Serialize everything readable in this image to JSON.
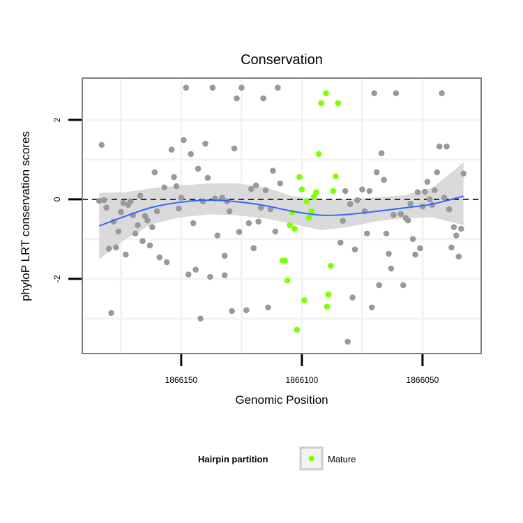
{
  "chart_data": {
    "type": "scatter",
    "title": "Conservation",
    "xlabel": "Genomic Position",
    "ylabel": "phyloP LRT conservation scores",
    "xlim": [
      1866191,
      1866025.7
    ],
    "x_reversed": true,
    "ylim": [
      -3.88,
      3.05
    ],
    "x_ticks": [
      1866150,
      1866100,
      1866050
    ],
    "x_tick_labels": [
      "1866150",
      "1866100",
      "1866050"
    ],
    "y_ticks": [
      -2,
      0,
      2
    ],
    "y_tick_labels": [
      "-2",
      "0",
      "2"
    ],
    "x_minor_grid": [
      1866175,
      1866125,
      1866075
    ],
    "y_minor_grid": [
      -3,
      -1,
      1
    ],
    "grid": true,
    "reference_line": {
      "y": 0,
      "style": "dashed",
      "color": "#000000"
    },
    "legend": {
      "position": "bottom",
      "title": "Hairpin partition",
      "entries": [
        {
          "label": "Mature",
          "color": "#7fff00"
        }
      ]
    },
    "colors": {
      "other": "#999999",
      "mature": "#7fff00",
      "smooth": "#3366ff",
      "ribbon": "#d4d4d4",
      "panel_border": "#7f7f7f"
    },
    "series": [
      {
        "name": "Other",
        "points": [
          [
            1866183,
            1.37
          ],
          [
            1866184,
            -0.04
          ],
          [
            1866182,
            -0.02
          ],
          [
            1866181,
            -0.21
          ],
          [
            1866180,
            -1.24
          ],
          [
            1866179,
            -2.86
          ],
          [
            1866178,
            -0.56
          ],
          [
            1866177,
            -1.21
          ],
          [
            1866176,
            -0.81
          ],
          [
            1866175,
            -0.32
          ],
          [
            1866174,
            -0.09
          ],
          [
            1866172,
            -0.14
          ],
          [
            1866171,
            -0.05
          ],
          [
            1866173,
            -1.39
          ],
          [
            1866170,
            -0.4
          ],
          [
            1866169,
            -0.86
          ],
          [
            1866168,
            -0.65
          ],
          [
            1866167,
            0.09
          ],
          [
            1866166,
            -1.05
          ],
          [
            1866165,
            -0.42
          ],
          [
            1866164,
            -0.53
          ],
          [
            1866163,
            -1.16
          ],
          [
            1866162,
            -0.7
          ],
          [
            1866161,
            0.68
          ],
          [
            1866160,
            -0.3
          ],
          [
            1866159,
            -1.46
          ],
          [
            1866157,
            0.3
          ],
          [
            1866156,
            -1.58
          ],
          [
            1866154,
            1.25
          ],
          [
            1866153,
            0.56
          ],
          [
            1866152,
            0.33
          ],
          [
            1866151,
            -0.23
          ],
          [
            1866150,
            0.04
          ],
          [
            1866149,
            1.49
          ],
          [
            1866148,
            2.81
          ],
          [
            1866147,
            -1.89
          ],
          [
            1866146,
            1.14
          ],
          [
            1866145,
            -0.6
          ],
          [
            1866144,
            -1.77
          ],
          [
            1866143,
            0.77
          ],
          [
            1866142,
            -3.0
          ],
          [
            1866141,
            -0.05
          ],
          [
            1866140,
            1.4
          ],
          [
            1866139,
            0.54
          ],
          [
            1866138,
            -1.95
          ],
          [
            1866137,
            2.81
          ],
          [
            1866136,
            0.02
          ],
          [
            1866135,
            -0.91
          ],
          [
            1866133,
            0.04
          ],
          [
            1866132,
            -1.91
          ],
          [
            1866132,
            -1.42
          ],
          [
            1866131,
            -0.05
          ],
          [
            1866130,
            -0.3
          ],
          [
            1866129,
            -2.81
          ],
          [
            1866128,
            1.28
          ],
          [
            1866127,
            2.54
          ],
          [
            1866126,
            -0.82
          ],
          [
            1866125,
            2.81
          ],
          [
            1866123,
            -2.79
          ],
          [
            1866122,
            -0.6
          ],
          [
            1866121,
            0.26
          ],
          [
            1866120,
            -1.23
          ],
          [
            1866119,
            0.35
          ],
          [
            1866118,
            -0.56
          ],
          [
            1866117,
            -0.21
          ],
          [
            1866116,
            2.54
          ],
          [
            1866115,
            0.23
          ],
          [
            1866114,
            -2.72
          ],
          [
            1866113,
            -0.25
          ],
          [
            1866112,
            0.72
          ],
          [
            1866111,
            -0.81
          ],
          [
            1866110,
            2.81
          ],
          [
            1866109,
            0.4
          ],
          [
            1866084,
            -1.09
          ],
          [
            1866083,
            -0.54
          ],
          [
            1866082,
            0.21
          ],
          [
            1866081,
            -3.58
          ],
          [
            1866080,
            -0.12
          ],
          [
            1866079,
            -2.47
          ],
          [
            1866078,
            -1.26
          ],
          [
            1866077,
            -0.02
          ],
          [
            1866075,
            0.25
          ],
          [
            1866074,
            -0.3
          ],
          [
            1866073,
            -0.86
          ],
          [
            1866072,
            0.21
          ],
          [
            1866071,
            -2.72
          ],
          [
            1866070,
            2.67
          ],
          [
            1866069,
            0.68
          ],
          [
            1866068,
            -2.16
          ],
          [
            1866067,
            1.16
          ],
          [
            1866066,
            0.49
          ],
          [
            1866065,
            -0.86
          ],
          [
            1866064,
            -1.37
          ],
          [
            1866063,
            -1.74
          ],
          [
            1866062,
            -0.39
          ],
          [
            1866061,
            2.67
          ],
          [
            1866059,
            -0.37
          ],
          [
            1866058,
            -2.16
          ],
          [
            1866057,
            -0.47
          ],
          [
            1866056,
            -0.53
          ],
          [
            1866055,
            -0.11
          ],
          [
            1866054,
            -1.0
          ],
          [
            1866053,
            -1.39
          ],
          [
            1866052,
            0.18
          ],
          [
            1866051,
            -1.23
          ],
          [
            1866050,
            -0.18
          ],
          [
            1866049,
            0.19
          ],
          [
            1866048,
            0.44
          ],
          [
            1866047,
            0.0
          ],
          [
            1866046,
            -0.14
          ],
          [
            1866045,
            0.23
          ],
          [
            1866044,
            0.68
          ],
          [
            1866043,
            1.33
          ],
          [
            1866042,
            2.67
          ],
          [
            1866041,
            0.04
          ],
          [
            1866040,
            1.33
          ],
          [
            1866039,
            -0.25
          ],
          [
            1866038,
            -1.21
          ],
          [
            1866037,
            -0.7
          ],
          [
            1866036,
            -0.91
          ],
          [
            1866035,
            -1.44
          ],
          [
            1866034,
            -0.74
          ],
          [
            1866033,
            0.65
          ]
        ]
      },
      {
        "name": "Mature",
        "points": [
          [
            1866090,
            2.67
          ],
          [
            1866092,
            2.42
          ],
          [
            1866085,
            2.42
          ],
          [
            1866093,
            1.14
          ],
          [
            1866101,
            0.56
          ],
          [
            1866086,
            0.58
          ],
          [
            1866100,
            0.25
          ],
          [
            1866094,
            0.18
          ],
          [
            1866087,
            0.21
          ],
          [
            1866095,
            0.07
          ],
          [
            1866098,
            -0.05
          ],
          [
            1866104,
            -0.33
          ],
          [
            1866096,
            -0.3
          ],
          [
            1866105,
            -0.65
          ],
          [
            1866103,
            -0.74
          ],
          [
            1866097,
            -0.46
          ],
          [
            1866108,
            -1.54
          ],
          [
            1866107,
            -1.54
          ],
          [
            1866088,
            -1.67
          ],
          [
            1866106,
            -2.04
          ],
          [
            1866089,
            -2.39
          ],
          [
            1866099,
            -2.54
          ],
          [
            1866089.6,
            -2.7
          ],
          [
            1866102,
            -3.28
          ]
        ]
      }
    ],
    "smooth": {
      "method": "loess",
      "x": [
        1866184,
        1866173,
        1866162,
        1866150,
        1866138,
        1866127,
        1866115,
        1866104,
        1866092,
        1866081,
        1866069,
        1866058,
        1866046,
        1866033
      ],
      "fit": [
        -0.67,
        -0.42,
        -0.2,
        -0.07,
        -0.02,
        -0.06,
        -0.16,
        -0.3,
        -0.4,
        -0.38,
        -0.3,
        -0.22,
        -0.12,
        0.08
      ],
      "lo": [
        -1.51,
        -1.0,
        -0.62,
        -0.45,
        -0.38,
        -0.4,
        -0.48,
        -0.62,
        -0.78,
        -0.7,
        -0.55,
        -0.48,
        -0.45,
        -0.65
      ],
      "hi": [
        0.16,
        0.18,
        0.28,
        0.35,
        0.4,
        0.4,
        0.3,
        0.08,
        0.0,
        0.0,
        0.05,
        0.1,
        0.28,
        0.93
      ]
    }
  }
}
